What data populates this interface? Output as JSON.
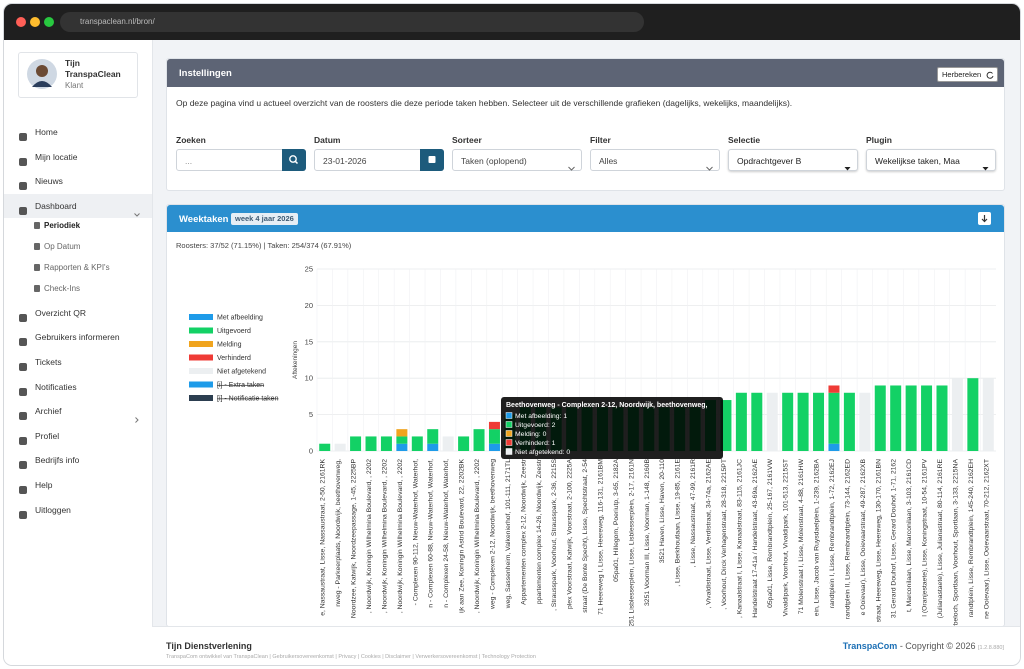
{
  "browser": {
    "url": "transpaclean.nl/bron/"
  },
  "user": {
    "first_name": "Tijn",
    "last_name": "TranspaClean",
    "role": "Klant"
  },
  "menu": [
    {
      "label": "Home"
    },
    {
      "label": "Mijn locatie"
    },
    {
      "label": "Nieuws"
    },
    {
      "label": "Dashboard",
      "active": true,
      "expandable": true,
      "submenu": [
        "Periodiek",
        "Op Datum",
        "Rapporten & KPI's",
        "Check-Ins"
      ]
    },
    {
      "label": "Overzicht QR"
    },
    {
      "label": "Gebruikers informeren"
    },
    {
      "label": "Tickets"
    },
    {
      "label": "Notificaties"
    },
    {
      "label": "Archief",
      "expandable": true
    },
    {
      "label": "Profiel"
    },
    {
      "label": "Bedrijfs info"
    },
    {
      "label": "Help"
    },
    {
      "label": "Uitloggen"
    }
  ],
  "settings": {
    "title": "Instellingen",
    "recalc_button": "Herbereken",
    "intro": "Op deze pagina vind u actueel overzicht van de roosters die deze periode taken hebben. Selecteer uit de verschillende grafieken (dagelijks, wekelijks, maandelijks).",
    "fields": [
      {
        "label": "Zoeken",
        "value": "...",
        "kind": "search"
      },
      {
        "label": "Datum",
        "value": "23-01-2026",
        "kind": "date"
      },
      {
        "label": "Sorteer",
        "value": "Taken (oplopend)",
        "kind": "select"
      },
      {
        "label": "Filter",
        "value": "Alles",
        "kind": "select"
      },
      {
        "label": "Selectie",
        "value": "Opdrachtgever B",
        "kind": "dropdown"
      },
      {
        "label": "Plugin",
        "value": "Wekelijkse taken, Maa",
        "kind": "dropdown"
      }
    ]
  },
  "panel": {
    "title": "Weektaken",
    "badge": "week 4 jaar 2026",
    "stats": "Roosters: 37/52 (71.15%) | Taken: 254/374 (67.91%)"
  },
  "chart_data": {
    "type": "stacked_bar",
    "y_label": "Aftekeningen",
    "ylim": [
      0,
      25
    ],
    "yticks": [
      0,
      5,
      10,
      15,
      20,
      25
    ],
    "grid": true,
    "legend": "left",
    "categories": [
      "e, Nassaustraat, Lisse, Nassaustraat, 2-50, 2161RK",
      "nweg - Parkeerplaats, Noordwijk, beethovenweg,",
      "Noordzee, Katwijk, Noordzeepassage, 1-45, 2225BP",
      ", Noordwijk, Koningin Wilhelmina Boulevard, , 2202",
      ", Noordwijk, Koningin Wilhelmina Boulevard, , 2202",
      ", Noordwijk, Koningin Wilhelmina Boulevard, , 2202",
      "- Complexen 90-112, Nieuw-Waterhof, Waterhof,",
      "n - Complexen 60-88, Nieuw-Waterhof, Waterhof,",
      "n - Complexen 24-58, Nieuw-Waterhof, Waterhof,",
      "ijk aan Zee, Koningin Astrid Boulevard, 22, 2202BK",
      ", Noordwijk, Koningin Wilhelmina Boulevard, , 2202",
      "weg - Complexen 2-12, Noordwijk, beethovenweg",
      "weg, Sassenheim, Valkenierhof, 101-111, 2171TL",
      "Appartementen complex 2-12, Noordwijk, Zeestr",
      "ppartementen complex 14-26, Noordwijk, Zeestr",
      ", Strausspark, Voorhout, Strausspark, 2-36, 2215S",
      "plex Voorstraat, Katwijk, Voorstraat, 2-100, 2225A",
      "straat (De Bonte Specht), Lisse, Spechtstraat, 2-54",
      "71 Heereweg I, Lisse, Heereweg, 116-131, 2161BM",
      "05pa01, Hillegom, Poeriutp, 3-65, 2182A",
      "3251 Lisblesserplein, Lisse, Lisblesserplein, 2-17, 2161N",
      "3251 Voorman III, Lisse, Voorman, 1-148, 2160B",
      "3521 Haven, Lisse, Haven, 20-110",
      ", Lisse, Berkhoutlaan, Lisse, 19-85, 2161E",
      ", Lisse, Nassaustraat, 47-99, 2161R",
      ", Vivaldistraat, Lisse, Verdistraat, 34-74a, 2162AE",
      ", Voorhout, Dirck Verhagenstraat, 28-318, 2215PT",
      ", Kanaalstraat I, Lisse, Kanaalstraat, 83-115, 2161JC",
      "Handelstraat 17-41a / Handelstraat, 43-69a, 2162AE",
      "05pa01, Lisse, Rembrandtplein, 25-167, 2161VW",
      "Vivaldipark, Voorhout, Vivaldipark, 101-513, 2215ST",
      "71 Molenstraat I, Lisse, Molenstraat, 4-88, 2161HW",
      "ein, Lisse, Jacob van Ruysdaelplein, 1-239, 2162BA",
      "randtplein I, Lisse, Rembrandtplein, 1-72, 2162EJ",
      "randtplein II, Lisse, Rembrandtplein, 73-144, 2162ED",
      "e Ooievaar), Lisse, Ooievaarstraat, 49-287, 2162XB",
      "straat, Heereweg, Lisse, Heereweg, 130-170, 2161BN",
      "31 Gerard Douhof, Lisse, Gerard Douhof, 1-71, 2162",
      "t, Marconilaan, Lisse, Marconilaan, 3-103, 2161CD",
      "l (Oranjestaete), Lisse, Koningstraat, 10-54, 2161PV",
      "(Julianastaete), Lisse, Julianastraat, 80-114, 2161RE",
      "erbeloch, Sportlaan, Voorhout, Sportlaan, 3-133, 2215NA",
      "randtplein, Lisse, Rembrandtplein, 145-240, 2162EH",
      "ne Ooievaar), Lisse, Ooievaarstraat, 70-212, 2162XT"
    ],
    "series": [
      {
        "name": "Met afbeelding",
        "color": "#1e9be9",
        "values": [
          0,
          0,
          0,
          0,
          0,
          1,
          0,
          1,
          0,
          0,
          0,
          1,
          0,
          0,
          0,
          0,
          0,
          0,
          0,
          0,
          0,
          0,
          0,
          0,
          0,
          0,
          0,
          0,
          0,
          0,
          0,
          0,
          0,
          1,
          0,
          0,
          0,
          0,
          0,
          0,
          0,
          0,
          0,
          0
        ]
      },
      {
        "name": "Uitgevoerd",
        "color": "#13d165",
        "values": [
          1,
          0,
          2,
          2,
          2,
          1,
          2,
          2,
          0,
          2,
          3,
          2,
          5,
          6,
          6,
          6,
          6,
          6,
          6,
          6,
          6,
          6,
          6,
          6,
          6,
          7,
          7,
          8,
          8,
          0,
          8,
          8,
          8,
          7,
          8,
          0,
          9,
          9,
          9,
          9,
          9,
          0,
          10,
          0
        ]
      },
      {
        "name": "Melding",
        "color": "#f0a41e",
        "values": [
          0,
          0,
          0,
          0,
          0,
          1,
          0,
          0,
          0,
          0,
          0,
          0,
          0,
          0,
          0,
          0,
          0,
          0,
          0,
          0,
          0,
          0,
          0,
          0,
          0,
          0,
          0,
          0,
          0,
          0,
          0,
          0,
          0,
          0,
          0,
          0,
          0,
          0,
          0,
          0,
          0,
          0,
          0,
          0
        ]
      },
      {
        "name": "Verhinderd",
        "color": "#ef3b36",
        "values": [
          0,
          0,
          0,
          0,
          0,
          0,
          0,
          0,
          0,
          0,
          0,
          1,
          0,
          0,
          0,
          0,
          0,
          0,
          0,
          0,
          0,
          0,
          0,
          0,
          0,
          0,
          0,
          0,
          0,
          0,
          0,
          0,
          0,
          1,
          0,
          0,
          0,
          0,
          0,
          0,
          0,
          0,
          0,
          0
        ]
      },
      {
        "name": "Niet afgetekend",
        "color": "#eceff1",
        "values": [
          0,
          1,
          0,
          0,
          0,
          0,
          0,
          0,
          2,
          0,
          0,
          0,
          0,
          0,
          0,
          0,
          0,
          0,
          0,
          0,
          0,
          0,
          0,
          0,
          0,
          0,
          0,
          0,
          0,
          8,
          0,
          0,
          0,
          0,
          0,
          8,
          0,
          0,
          0,
          0,
          0,
          10,
          0,
          10
        ]
      }
    ],
    "hidden_series": [
      {
        "name": "[i] - Extra taken",
        "color": "#1e9be9"
      },
      {
        "name": "[i] - Notificatie taken",
        "color": "#2c3e50"
      }
    ],
    "tooltip": {
      "category_index": 11,
      "title": "Beethovenweg - Complexen 2-12, Noordwijk, beethovenweg,",
      "lines": [
        "Met afbeelding: 1",
        "Uitgevoerd: 2",
        "Melding: 0",
        "Verhinderd: 1",
        "Niet afgetekend: 0"
      ]
    }
  },
  "footer": {
    "company": "Tijn Dienstverlening",
    "links": "TranspaCom ontwikkel van TranspaClean | Gebruikersovereenkomst | Privacy | Cookies | Disclaimer | Verwerkersovereenkomst | Technology Protection",
    "brand": "TranspaCom",
    "copyright": "- Copyright © 2026",
    "version": "[1.2.8.880]"
  }
}
